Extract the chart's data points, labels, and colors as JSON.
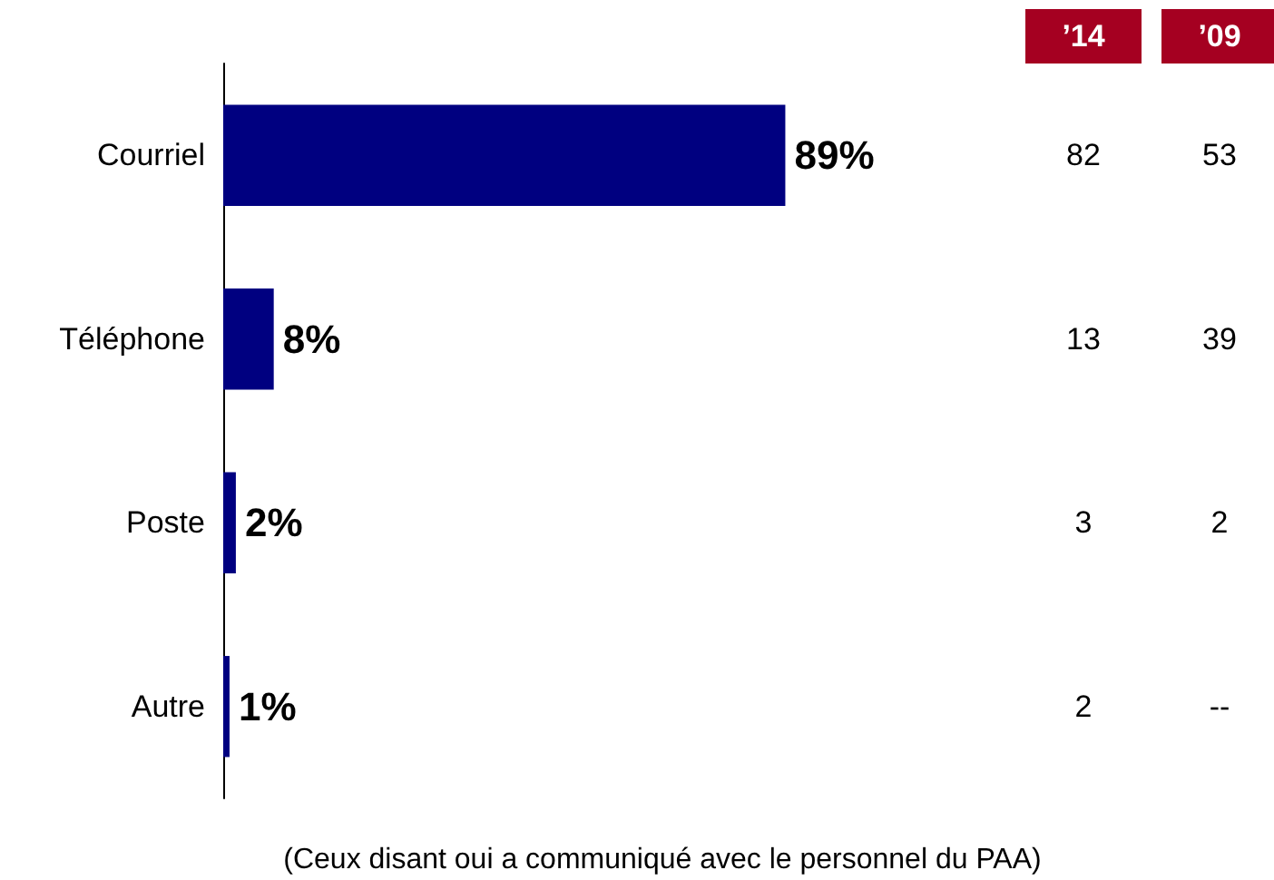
{
  "chart_data": {
    "type": "bar",
    "orientation": "horizontal",
    "categories": [
      "Courriel",
      "Téléphone",
      "Poste",
      "Autre"
    ],
    "values": [
      89,
      8,
      2,
      1
    ],
    "value_labels": [
      "89%",
      "8%",
      "2%",
      "1%"
    ],
    "color": "#000080",
    "annotations": [
      "’14",
      "’09",
      "82",
      "53",
      "13",
      "39",
      "3",
      "2",
      "2",
      "--",
      "(Ceux disant oui a communiqué avec le personnel du PAA)"
    ]
  }
}
